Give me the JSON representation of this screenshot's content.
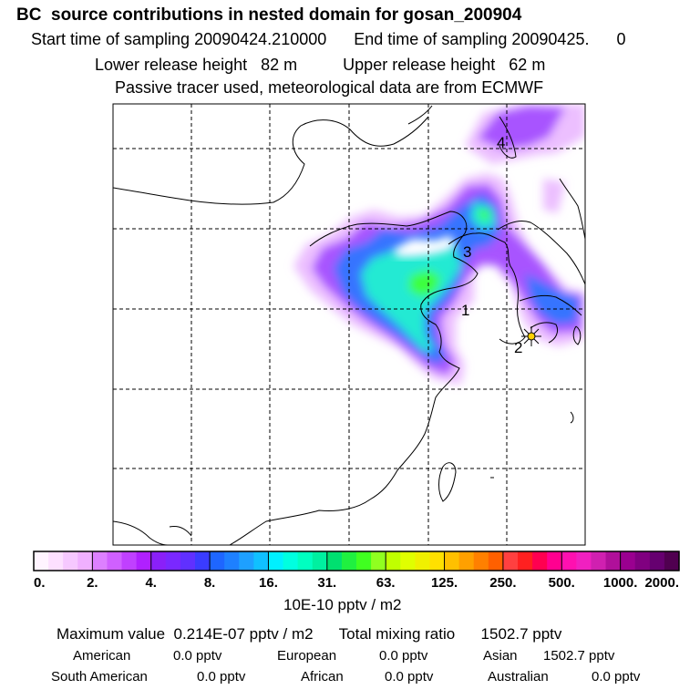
{
  "header": {
    "title": "BC  source contributions in nested domain for gosan_200904",
    "start_label": "Start time of sampling",
    "start_value": "20090424.210000",
    "end_label": "End time of sampling",
    "end_value": "20090425.",
    "end_suffix": "0",
    "lower_label": "Lower release height",
    "lower_value": "82 m",
    "upper_label": "Upper release height",
    "upper_value": "62 m",
    "note": "Passive tracer used, meteorological data are from ECMWF"
  },
  "map": {
    "site_labels": [
      "1",
      "2",
      "3",
      "4"
    ],
    "release_site_marker": "star-marker",
    "plume_peak_color": "#3cff3c",
    "plume_edge_color": "#b020ff",
    "coastline_color": "#000000"
  },
  "colorbar": {
    "tick_labels": [
      "0.",
      "2.",
      "4.",
      "8.",
      "16.",
      "31.",
      "63.",
      "125.",
      "250.",
      "500.",
      "1000.",
      "2000."
    ],
    "unit": "10E-10 pptv / m2",
    "colors": [
      "#fff4ff",
      "#fde0ff",
      "#f6c8ff",
      "#f0b0ff",
      "#dd80ff",
      "#d060ff",
      "#c040ff",
      "#b020ff",
      "#8a20f8",
      "#7a28ff",
      "#6030ff",
      "#3a3cff",
      "#1e66ff",
      "#1e80ff",
      "#1ea0ff",
      "#10c0ff",
      "#00f0ff",
      "#00ffe0",
      "#00ffc0",
      "#00f0a0",
      "#00e070",
      "#20f040",
      "#40ff20",
      "#90ff20",
      "#c0ff00",
      "#e0ff00",
      "#f0f000",
      "#ffe000",
      "#ffc000",
      "#ffa000",
      "#ff8000",
      "#ff6000",
      "#ff4040",
      "#ff2020",
      "#ff0050",
      "#ff0090",
      "#ff10b0",
      "#f020c0",
      "#d020b0",
      "#b0109a",
      "#9a0090",
      "#800080",
      "#660070",
      "#500050"
    ]
  },
  "summary": {
    "max_label": "Maximum value",
    "max_value": "0.214E-07 pptv / m2",
    "total_label": "Total mixing ratio",
    "total_value": "1502.7 pptv",
    "contributions": [
      {
        "name": "American",
        "value": "0.0 pptv"
      },
      {
        "name": "European",
        "value": "0.0 pptv"
      },
      {
        "name": "Asian",
        "value": "1502.7 pptv"
      },
      {
        "name": "South American",
        "value": "0.0 pptv"
      },
      {
        "name": "African",
        "value": "0.0 pptv"
      },
      {
        "name": "Australian",
        "value": "0.0 pptv"
      }
    ]
  }
}
